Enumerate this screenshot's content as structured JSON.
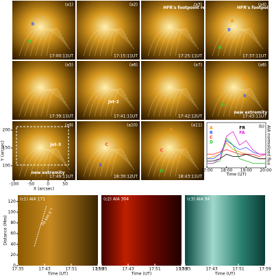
{
  "panels": [
    {
      "label": "(a1)",
      "time": "17:00:11UT",
      "notes": [
        "B",
        "D"
      ]
    },
    {
      "label": "(a2)",
      "time": "17:15:11UT",
      "notes": []
    },
    {
      "label": "(a3)",
      "time": "17:25:11UT",
      "notes": [
        "HFR's footpoint region"
      ]
    },
    {
      "label": "(a4)",
      "time": "17:37:11UT",
      "notes": [
        "HFR's footpoint region",
        "A",
        "B",
        "D"
      ]
    },
    {
      "label": "(a5)",
      "time": "17:39:11UT",
      "notes": []
    },
    {
      "label": "(a6)",
      "time": "17:41:11UT",
      "notes": [
        "Jet-2"
      ]
    },
    {
      "label": "(a7)",
      "time": "17:42:12UT",
      "notes": []
    },
    {
      "label": "(a8)",
      "time": "17:43:11UT",
      "notes": [
        "A",
        "B",
        "D",
        "new extremity"
      ]
    },
    {
      "label": "(a9)",
      "time": "17:49:11UT",
      "notes": [
        "new extremity",
        "Jet-3"
      ]
    },
    {
      "label": "(a10)",
      "time": "18:30:12UT",
      "notes": [
        "C",
        "B"
      ]
    },
    {
      "label": "(a11)",
      "time": "18:43:11UT",
      "notes": [
        "A",
        "C",
        "D"
      ]
    }
  ],
  "solar_axes": {
    "y_label": "Y (arcsec)",
    "yticks": [
      100,
      150,
      200
    ],
    "ylim": [
      60,
      225
    ],
    "x_label": "X (arcsec)",
    "xticks": [
      -100,
      -50,
      0,
      50
    ],
    "xlim": [
      -105,
      80
    ]
  },
  "chart_data": {
    "type": "line",
    "label": "(b)",
    "x_label": "Time (UT)",
    "y_label": "AIA normalized flux",
    "x": [
      "17:00",
      "17:20",
      "17:40",
      "18:00",
      "18:20",
      "18:40",
      "19:00",
      "19:20",
      "19:40",
      "20:00"
    ],
    "xticks": [
      "17:00",
      "18:00",
      "19:00",
      "20:00"
    ],
    "ylim": [
      0,
      1
    ],
    "series": [
      {
        "name": "A",
        "color": "#ff8c00",
        "values": [
          0.2,
          0.25,
          0.3,
          0.55,
          0.4,
          0.35,
          0.3,
          0.25,
          0.2,
          0.2
        ]
      },
      {
        "name": "B",
        "color": "#3050ff",
        "values": [
          0.2,
          0.2,
          0.3,
          0.6,
          0.5,
          0.4,
          0.45,
          0.35,
          0.3,
          0.3
        ]
      },
      {
        "name": "C",
        "color": "#ff2020",
        "values": [
          0.3,
          0.3,
          0.35,
          0.4,
          0.35,
          0.3,
          0.3,
          0.3,
          0.25,
          0.3
        ]
      },
      {
        "name": "D",
        "color": "#20c020",
        "values": [
          0.1,
          0.1,
          0.15,
          0.65,
          0.5,
          0.2,
          0.15,
          0.1,
          0.1,
          0.1
        ]
      },
      {
        "name": "FR",
        "color": "#000000",
        "values": [
          0.15,
          0.15,
          0.2,
          0.3,
          0.25,
          0.25,
          0.3,
          0.25,
          0.2,
          0.2
        ]
      },
      {
        "name": "FA",
        "color": "#e020e0",
        "values": [
          0.1,
          0.1,
          0.2,
          0.7,
          0.8,
          0.5,
          0.6,
          0.4,
          0.3,
          0.3
        ]
      }
    ]
  },
  "time_distance": {
    "panels": [
      "(c1) AIA 171",
      "(c2) AIA 304",
      "(c3) AIA 94"
    ],
    "speed": "70 km s⁻¹",
    "y_label": "Distance (Mm)",
    "yticks": [
      0,
      20,
      40,
      60,
      80,
      100,
      120
    ],
    "ylim": [
      0,
      132
    ],
    "x_label": "Time (UT)",
    "xticks": [
      "17:35",
      "17:43",
      "17:51",
      "17:59"
    ]
  }
}
